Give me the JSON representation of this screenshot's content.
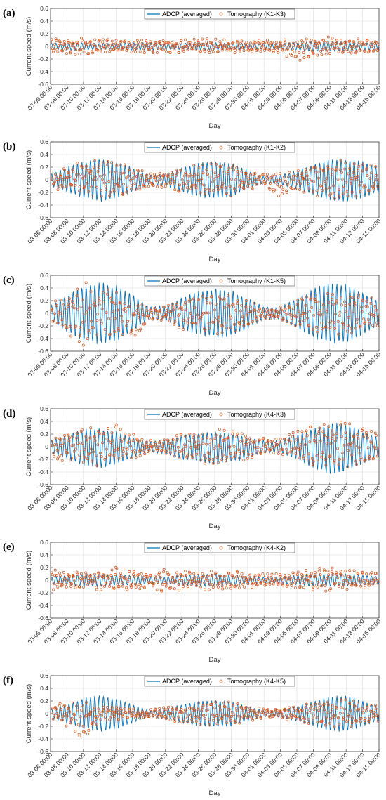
{
  "figure": {
    "colors": {
      "adcp": "#0072BD",
      "tomography": "#D95319",
      "grid": "#dcdcdc",
      "axis": "#262626"
    }
  },
  "chart_data": [
    {
      "panel": "(a)",
      "type": "line",
      "ylabel": "Current speed (m/s)",
      "xlabel": "Day",
      "ylim": [
        -0.6,
        0.6
      ],
      "yticks": [
        0.6,
        0.4,
        0.2,
        0,
        -0.2,
        -0.4,
        -0.6
      ],
      "xlim": [
        "03-06 00:00",
        "04-15 00:00"
      ],
      "xticks": [
        "03-06 00:00",
        "03-08 00:00",
        "03-10 00:00",
        "03-12 00:00",
        "03-14 00:00",
        "03-16 00:00",
        "03-18 00:00",
        "03-20 00:00",
        "03-22 00:00",
        "03-24 00:00",
        "03-26 00:00",
        "03-28 00:00",
        "03-30 00:00",
        "04-01 00:00",
        "04-03 00:00",
        "04-05 00:00",
        "04-07 00:00",
        "04-09 00:00",
        "04-11 00:00",
        "04-13 00:00",
        "04-15 00:00"
      ],
      "grid": true,
      "legend_placement": "top",
      "series": [
        {
          "name": "ADCP (averaged)",
          "style": "line",
          "envelope_max": [
            0.05,
            0.06,
            0.06,
            0.05,
            0.05,
            0.06,
            0.06,
            0.05,
            0.05,
            0.06,
            0.06,
            0.05,
            0.05,
            0.05,
            0.05,
            0.06,
            0.08,
            0.08,
            0.07,
            0.06,
            0.06
          ],
          "envelope_min": [
            -0.05,
            -0.06,
            -0.06,
            -0.05,
            -0.05,
            -0.06,
            -0.06,
            -0.05,
            -0.05,
            -0.06,
            -0.06,
            -0.05,
            -0.05,
            -0.05,
            -0.05,
            -0.06,
            -0.08,
            -0.08,
            -0.07,
            -0.06,
            -0.06
          ]
        },
        {
          "name": "Tomography (K1-K3)",
          "style": "markers",
          "envelope_max": [
            0.12,
            0.12,
            0.15,
            0.12,
            0.1,
            0.1,
            0.1,
            0.1,
            0.1,
            0.12,
            0.12,
            0.1,
            0.1,
            0.1,
            0.1,
            0.12,
            0.15,
            0.15,
            0.12,
            0.12,
            0.12
          ],
          "envelope_min": [
            -0.12,
            -0.12,
            -0.15,
            -0.12,
            -0.1,
            -0.1,
            -0.1,
            -0.1,
            -0.1,
            -0.1,
            -0.1,
            -0.1,
            -0.1,
            -0.1,
            -0.1,
            -0.25,
            -0.15,
            -0.12,
            -0.12,
            -0.1,
            -0.1
          ]
        }
      ]
    },
    {
      "panel": "(b)",
      "type": "line",
      "ylabel": "Current speed (m/s)",
      "xlabel": "Day",
      "ylim": [
        -0.6,
        0.6
      ],
      "yticks": [
        0.6,
        0.4,
        0.2,
        0,
        -0.2,
        -0.4,
        -0.6
      ],
      "xlim": [
        "03-06 00:00",
        "04-15 00:00"
      ],
      "xticks": [
        "03-06 00:00",
        "03-08 00:00",
        "03-10 00:00",
        "03-12 00:00",
        "03-14 00:00",
        "03-16 00:00",
        "03-18 00:00",
        "03-20 00:00",
        "03-22 00:00",
        "03-24 00:00",
        "03-26 00:00",
        "03-28 00:00",
        "03-30 00:00",
        "04-01 00:00",
        "04-03 00:00",
        "04-05 00:00",
        "04-07 00:00",
        "04-09 00:00",
        "04-11 00:00",
        "04-13 00:00",
        "04-15 00:00"
      ],
      "grid": true,
      "legend_placement": "top",
      "series": [
        {
          "name": "ADCP (averaged)",
          "style": "line",
          "envelope_max": [
            0.1,
            0.2,
            0.3,
            0.35,
            0.3,
            0.2,
            0.08,
            0.1,
            0.2,
            0.28,
            0.3,
            0.28,
            0.15,
            0.05,
            0.08,
            0.15,
            0.25,
            0.33,
            0.35,
            0.3,
            0.2
          ],
          "envelope_min": [
            -0.1,
            -0.2,
            -0.3,
            -0.36,
            -0.3,
            -0.2,
            -0.08,
            -0.1,
            -0.2,
            -0.28,
            -0.3,
            -0.28,
            -0.15,
            -0.05,
            -0.08,
            -0.15,
            -0.25,
            -0.33,
            -0.35,
            -0.3,
            -0.2
          ]
        },
        {
          "name": "Tomography (K1-K2)",
          "style": "markers",
          "envelope_max": [
            0.12,
            0.2,
            0.3,
            0.32,
            0.28,
            0.2,
            0.1,
            0.12,
            0.2,
            0.25,
            0.28,
            0.25,
            0.15,
            0.1,
            0.12,
            0.15,
            0.25,
            0.3,
            0.32,
            0.28,
            0.2
          ],
          "envelope_min": [
            -0.12,
            -0.2,
            -0.28,
            -0.3,
            -0.26,
            -0.2,
            -0.12,
            -0.12,
            -0.2,
            -0.25,
            -0.26,
            -0.25,
            -0.15,
            -0.1,
            -0.35,
            -0.15,
            -0.25,
            -0.3,
            -0.3,
            -0.28,
            -0.2
          ]
        }
      ]
    },
    {
      "panel": "(c)",
      "type": "line",
      "ylabel": "Current speed (m/s)",
      "xlabel": "Day",
      "ylim": [
        -0.6,
        0.6
      ],
      "yticks": [
        0.6,
        0.4,
        0.2,
        0,
        -0.2,
        -0.4,
        -0.6
      ],
      "xlim": [
        "03-06 00:00",
        "04-15 00:00"
      ],
      "xticks": [
        "03-06 00:00",
        "03-08 00:00",
        "03-10 00:00",
        "03-12 00:00",
        "03-14 00:00",
        "03-16 00:00",
        "03-18 00:00",
        "03-20 00:00",
        "03-22 00:00",
        "03-24 00:00",
        "03-26 00:00",
        "03-28 00:00",
        "03-30 00:00",
        "04-01 00:00",
        "04-03 00:00",
        "04-05 00:00",
        "04-07 00:00",
        "04-09 00:00",
        "04-11 00:00",
        "04-13 00:00",
        "04-15 00:00"
      ],
      "grid": true,
      "legend_placement": "top",
      "series": [
        {
          "name": "ADCP (averaged)",
          "style": "line",
          "envelope_max": [
            0.12,
            0.3,
            0.45,
            0.5,
            0.45,
            0.3,
            0.1,
            0.12,
            0.25,
            0.35,
            0.4,
            0.38,
            0.25,
            0.1,
            0.1,
            0.25,
            0.4,
            0.5,
            0.48,
            0.35,
            0.2
          ],
          "envelope_min": [
            -0.12,
            -0.3,
            -0.45,
            -0.5,
            -0.45,
            -0.3,
            -0.1,
            -0.12,
            -0.25,
            -0.35,
            -0.4,
            -0.38,
            -0.25,
            -0.1,
            -0.1,
            -0.25,
            -0.4,
            -0.5,
            -0.48,
            -0.35,
            -0.2
          ]
        },
        {
          "name": "Tomography (K1-K5)",
          "style": "markers",
          "envelope_max": [
            0.15,
            0.3,
            0.5,
            0.45,
            0.35,
            0.2,
            0.1,
            0.12,
            0.25,
            0.3,
            0.35,
            0.32,
            0.2,
            0.1,
            0.1,
            0.2,
            0.3,
            0.35,
            0.35,
            0.3,
            0.2
          ],
          "envelope_min": [
            -0.15,
            -0.3,
            -0.55,
            -0.4,
            -0.3,
            -0.45,
            -0.1,
            -0.12,
            -0.25,
            -0.3,
            -0.33,
            -0.3,
            -0.2,
            -0.1,
            -0.1,
            -0.2,
            -0.3,
            -0.35,
            -0.35,
            -0.3,
            -0.2
          ]
        }
      ]
    },
    {
      "panel": "(d)",
      "type": "line",
      "ylabel": "Current speed (m/s)",
      "xlabel": "Day",
      "ylim": [
        -0.6,
        0.6
      ],
      "yticks": [
        0.6,
        0.4,
        0.2,
        0,
        -0.2,
        -0.4,
        -0.6
      ],
      "xlim": [
        "03-06 00:00",
        "04-15 00:00"
      ],
      "xticks": [
        "03-06 00:00",
        "03-08 00:00",
        "03-10 00:00",
        "03-12 00:00",
        "03-14 00:00",
        "03-16 00:00",
        "03-18 00:00",
        "03-20 00:00",
        "03-22 00:00",
        "03-24 00:00",
        "03-26 00:00",
        "03-28 00:00",
        "03-30 00:00",
        "04-01 00:00",
        "04-03 00:00",
        "04-05 00:00",
        "04-07 00:00",
        "04-09 00:00",
        "04-11 00:00",
        "04-13 00:00",
        "04-15 00:00"
      ],
      "grid": true,
      "legend_placement": "top",
      "series": [
        {
          "name": "ADCP (averaged)",
          "style": "line",
          "envelope_max": [
            0.1,
            0.2,
            0.28,
            0.3,
            0.25,
            0.15,
            0.08,
            0.12,
            0.18,
            0.22,
            0.25,
            0.22,
            0.15,
            0.1,
            0.1,
            0.2,
            0.3,
            0.4,
            0.38,
            0.25,
            0.15
          ],
          "envelope_min": [
            -0.1,
            -0.2,
            -0.3,
            -0.35,
            -0.28,
            -0.18,
            -0.08,
            -0.12,
            -0.2,
            -0.25,
            -0.28,
            -0.25,
            -0.18,
            -0.1,
            -0.1,
            -0.2,
            -0.35,
            -0.45,
            -0.4,
            -0.28,
            -0.15
          ]
        },
        {
          "name": "Tomography (K4-K3)",
          "style": "markers",
          "envelope_max": [
            0.15,
            0.25,
            0.3,
            0.3,
            0.35,
            0.2,
            0.1,
            0.12,
            0.2,
            0.25,
            0.3,
            0.28,
            0.2,
            0.15,
            0.15,
            0.25,
            0.35,
            0.4,
            0.38,
            0.3,
            0.2
          ],
          "envelope_min": [
            -0.15,
            -0.25,
            -0.3,
            -0.3,
            -0.25,
            -0.18,
            -0.1,
            -0.12,
            -0.2,
            -0.25,
            -0.28,
            -0.25,
            -0.2,
            -0.12,
            -0.12,
            -0.2,
            -0.3,
            -0.35,
            -0.35,
            -0.28,
            -0.2
          ]
        }
      ]
    },
    {
      "panel": "(e)",
      "type": "line",
      "ylabel": "Current speed (m/s)",
      "xlabel": "Day",
      "ylim": [
        -0.6,
        0.6
      ],
      "yticks": [
        0.6,
        0.4,
        0.2,
        0,
        -0.2,
        -0.4,
        -0.6
      ],
      "xlim": [
        "03-06 00:00",
        "04-15 00:00"
      ],
      "xticks": [
        "03-06 00:00",
        "03-08 00:00",
        "03-10 00:00",
        "03-12 00:00",
        "03-14 00:00",
        "03-16 00:00",
        "03-18 00:00",
        "03-20 00:00",
        "03-22 00:00",
        "03-24 00:00",
        "03-26 00:00",
        "03-28 00:00",
        "03-30 00:00",
        "04-01 00:00",
        "04-03 00:00",
        "04-05 00:00",
        "04-07 00:00",
        "04-09 00:00",
        "04-11 00:00",
        "04-13 00:00",
        "04-15 00:00"
      ],
      "grid": true,
      "legend_placement": "top",
      "series": [
        {
          "name": "ADCP (averaged)",
          "style": "line",
          "envelope_max": [
            0.06,
            0.08,
            0.1,
            0.1,
            0.08,
            0.08,
            0.06,
            0.06,
            0.08,
            0.1,
            0.1,
            0.08,
            0.06,
            0.05,
            0.05,
            0.08,
            0.1,
            0.1,
            0.1,
            0.08,
            0.06
          ],
          "envelope_min": [
            -0.06,
            -0.08,
            -0.1,
            -0.1,
            -0.08,
            -0.08,
            -0.06,
            -0.06,
            -0.08,
            -0.1,
            -0.1,
            -0.08,
            -0.06,
            -0.05,
            -0.05,
            -0.08,
            -0.1,
            -0.1,
            -0.1,
            -0.08,
            -0.06
          ]
        },
        {
          "name": "Tomography (K4-K2)",
          "style": "markers",
          "envelope_max": [
            0.18,
            0.15,
            0.15,
            0.15,
            0.22,
            0.15,
            0.12,
            0.18,
            0.15,
            0.15,
            0.15,
            0.15,
            0.12,
            0.1,
            0.1,
            0.15,
            0.18,
            0.2,
            0.18,
            0.15,
            0.15
          ],
          "envelope_min": [
            -0.15,
            -0.15,
            -0.15,
            -0.15,
            -0.15,
            -0.15,
            -0.12,
            -0.2,
            -0.15,
            -0.15,
            -0.15,
            -0.15,
            -0.12,
            -0.1,
            -0.1,
            -0.15,
            -0.15,
            -0.18,
            -0.15,
            -0.15,
            -0.12
          ]
        }
      ]
    },
    {
      "panel": "(f)",
      "type": "line",
      "ylabel": "Current speed (m/s)",
      "xlabel": "Day",
      "ylim": [
        -0.6,
        0.6
      ],
      "yticks": [
        0.6,
        0.4,
        0.2,
        0,
        -0.2,
        -0.4,
        -0.6
      ],
      "xlim": [
        "03-06 00:00",
        "04-15 00:00"
      ],
      "xticks": [
        "03-06 00:00",
        "03-08 00:00",
        "03-10 00:00",
        "03-12 00:00",
        "03-14 00:00",
        "03-16 00:00",
        "03-18 00:00",
        "03-20 00:00",
        "03-22 00:00",
        "03-24 00:00",
        "03-26 00:00",
        "03-28 00:00",
        "03-30 00:00",
        "04-01 00:00",
        "04-03 00:00",
        "04-05 00:00",
        "04-07 00:00",
        "04-09 00:00",
        "04-11 00:00",
        "04-13 00:00",
        "04-15 00:00"
      ],
      "grid": true,
      "legend_placement": "top",
      "series": [
        {
          "name": "ADCP (averaged)",
          "style": "line",
          "envelope_max": [
            0.08,
            0.15,
            0.25,
            0.3,
            0.25,
            0.15,
            0.05,
            0.08,
            0.15,
            0.2,
            0.22,
            0.2,
            0.12,
            0.05,
            0.06,
            0.12,
            0.2,
            0.28,
            0.3,
            0.2,
            0.12
          ],
          "envelope_min": [
            -0.08,
            -0.15,
            -0.25,
            -0.3,
            -0.25,
            -0.15,
            -0.05,
            -0.08,
            -0.15,
            -0.2,
            -0.22,
            -0.2,
            -0.12,
            -0.05,
            -0.06,
            -0.12,
            -0.2,
            -0.28,
            -0.3,
            -0.2,
            -0.12
          ]
        },
        {
          "name": "Tomography (K4-K5)",
          "style": "markers",
          "envelope_max": [
            0.12,
            0.2,
            0.2,
            0.1,
            0.1,
            0.08,
            0.06,
            0.1,
            0.15,
            0.18,
            0.2,
            0.18,
            0.12,
            0.08,
            0.08,
            0.12,
            0.18,
            0.2,
            0.22,
            0.18,
            0.12
          ],
          "envelope_min": [
            -0.12,
            -0.2,
            -0.4,
            -0.12,
            -0.1,
            -0.08,
            -0.06,
            -0.1,
            -0.15,
            -0.18,
            -0.2,
            -0.18,
            -0.12,
            -0.08,
            -0.08,
            -0.12,
            -0.18,
            -0.2,
            -0.22,
            -0.18,
            -0.12
          ]
        }
      ]
    }
  ]
}
